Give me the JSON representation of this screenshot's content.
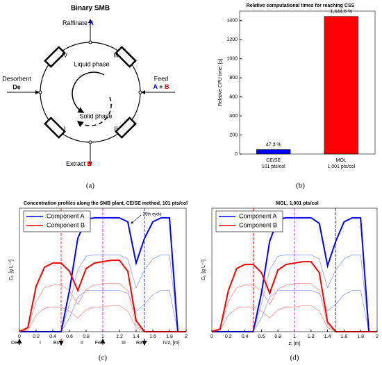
{
  "diagram": {
    "caption": "(a)",
    "title": "Binary SMB",
    "raffinate": "Raffinate",
    "raffinate_species": "A",
    "feed": "Feed",
    "feed_a": "A",
    "feed_plus": "+",
    "feed_b": "B",
    "desorbent": "Desorbent",
    "desorbent_species": "De",
    "extract": "Extract",
    "extract_species": "B",
    "liquid": "Liquid phase",
    "solid": "Solid phase",
    "zones": [
      "I",
      "II",
      "III",
      "IV"
    ]
  },
  "chart_data": [
    {
      "type": "bar",
      "caption": "(b)",
      "title": "Relative computational times for reaching CSS",
      "ylabel": "Relative CPU time, [s]",
      "categories": [
        [
          "CE/SE",
          "101 pts/col"
        ],
        [
          "MOL",
          "1,001 pts/col"
        ]
      ],
      "values": [
        47.3,
        1444.6
      ],
      "value_labels": [
        "47.3 %",
        "1,444.6 %"
      ],
      "colors": [
        "#0000ff",
        "#ff0000"
      ],
      "ylim": [
        0,
        1500
      ],
      "yticks": [
        0,
        200,
        400,
        600,
        800,
        1000,
        1200,
        1400
      ]
    },
    {
      "type": "line",
      "caption": "(c)",
      "title": "Concentration profiles along the SMB plant, CE/SE method, 101 pts/col",
      "xlabel": "z, [m]",
      "ylabel": "Cᵢ, [g L⁻¹]",
      "x": [
        0,
        0.1,
        0.2,
        0.3,
        0.4,
        0.5,
        0.6,
        0.7,
        0.8,
        0.9,
        1,
        1.1,
        1.2,
        1.3,
        1.4,
        1.5,
        1.6,
        1.7,
        1.8,
        1.9,
        2
      ],
      "xlim": [
        0,
        2
      ],
      "xticks": [
        0,
        0.2,
        0.4,
        0.6,
        0.8,
        1,
        1.2,
        1.4,
        1.6,
        1.8,
        2
      ],
      "ylim": [
        0,
        0.9
      ],
      "legend": "upper left",
      "series": [
        {
          "name": "Component A",
          "color": "#0000ff",
          "values": [
            0,
            0,
            0,
            0,
            0,
            0,
            0.3,
            0.68,
            0.82,
            0.83,
            0.83,
            0.83,
            0.83,
            0.8,
            0.5,
            0.68,
            0.8,
            0.83,
            0.83,
            0,
            0
          ]
        },
        {
          "name": "Component B",
          "color": "#ff0000",
          "values": [
            0,
            0.03,
            0.33,
            0.47,
            0.5,
            0.5,
            0.44,
            0.3,
            0.46,
            0.5,
            0.51,
            0.52,
            0.52,
            0.44,
            0.08,
            0,
            0,
            0,
            0,
            0,
            0
          ]
        }
      ],
      "history": [
        {
          "color": "#7f8fff",
          "values": [
            0,
            0,
            0,
            0,
            0,
            0,
            0.1,
            0.25,
            0.3,
            0.3,
            0.3,
            0.3,
            0.3,
            0.28,
            0.15,
            0.2,
            0.27,
            0.3,
            0.3,
            0,
            0
          ]
        },
        {
          "color": "#7f8fff",
          "values": [
            0,
            0,
            0,
            0,
            0,
            0,
            0.2,
            0.45,
            0.55,
            0.56,
            0.56,
            0.56,
            0.56,
            0.53,
            0.32,
            0.45,
            0.53,
            0.56,
            0.56,
            0,
            0
          ]
        },
        {
          "color": "#ff8080",
          "values": [
            0,
            0.01,
            0.12,
            0.17,
            0.18,
            0.18,
            0.15,
            0.1,
            0.16,
            0.18,
            0.18,
            0.19,
            0.19,
            0.15,
            0.03,
            0,
            0,
            0,
            0,
            0,
            0
          ]
        },
        {
          "color": "#ff8080",
          "values": [
            0,
            0.02,
            0.22,
            0.32,
            0.34,
            0.34,
            0.3,
            0.2,
            0.31,
            0.34,
            0.35,
            0.35,
            0.35,
            0.3,
            0.05,
            0,
            0,
            0,
            0,
            0,
            0
          ]
        }
      ],
      "vlines": [
        {
          "value": 0.5,
          "color": "#ff0000"
        },
        {
          "value": 1,
          "color": "#cc00cc"
        },
        {
          "value": 1.5,
          "color": "#0000ff"
        }
      ],
      "annotation": "25th cycle",
      "ports": [
        "De",
        "Ex",
        "Fe",
        "Ra"
      ],
      "zones": [
        "I",
        "II",
        "III",
        "IV"
      ]
    },
    {
      "type": "line",
      "caption": "(d)",
      "title": "MOL, 1,001 pts/col",
      "xlabel": "z, [m]",
      "ylabel": "Cᵢ, [g L⁻¹]",
      "x": [
        0,
        0.1,
        0.2,
        0.3,
        0.4,
        0.5,
        0.6,
        0.7,
        0.8,
        0.9,
        1,
        1.1,
        1.2,
        1.3,
        1.4,
        1.5,
        1.6,
        1.7,
        1.8,
        1.9,
        2
      ],
      "xlim": [
        0,
        2
      ],
      "xticks": [
        0,
        0.2,
        0.4,
        0.6,
        0.8,
        1,
        1.2,
        1.4,
        1.6,
        1.8,
        2
      ],
      "ylim": [
        0,
        0.9
      ],
      "legend": "upper left",
      "series": [
        {
          "name": "Component A",
          "color": "#0000ff",
          "values": [
            0,
            0,
            0,
            0,
            0,
            0,
            0.28,
            0.66,
            0.82,
            0.83,
            0.83,
            0.83,
            0.83,
            0.79,
            0.48,
            0.66,
            0.8,
            0.83,
            0.83,
            0,
            0
          ]
        },
        {
          "name": "Component B",
          "color": "#ff0000",
          "values": [
            0,
            0.02,
            0.3,
            0.46,
            0.49,
            0.49,
            0.43,
            0.28,
            0.45,
            0.49,
            0.5,
            0.51,
            0.51,
            0.43,
            0.07,
            0,
            0,
            0,
            0,
            0,
            0
          ]
        }
      ],
      "history": [
        {
          "color": "#7f8fff",
          "values": [
            0,
            0,
            0,
            0,
            0,
            0,
            0.1,
            0.25,
            0.3,
            0.3,
            0.3,
            0.3,
            0.3,
            0.28,
            0.15,
            0.2,
            0.27,
            0.3,
            0.3,
            0,
            0
          ]
        },
        {
          "color": "#7f8fff",
          "values": [
            0,
            0,
            0,
            0,
            0,
            0,
            0.2,
            0.45,
            0.55,
            0.56,
            0.56,
            0.56,
            0.56,
            0.53,
            0.32,
            0.45,
            0.53,
            0.56,
            0.56,
            0,
            0
          ]
        },
        {
          "color": "#ff8080",
          "values": [
            0,
            0.01,
            0.12,
            0.17,
            0.18,
            0.18,
            0.15,
            0.1,
            0.16,
            0.18,
            0.18,
            0.19,
            0.19,
            0.15,
            0.03,
            0,
            0,
            0,
            0,
            0,
            0
          ]
        },
        {
          "color": "#ff8080",
          "values": [
            0,
            0.02,
            0.22,
            0.32,
            0.34,
            0.34,
            0.3,
            0.2,
            0.31,
            0.34,
            0.35,
            0.35,
            0.35,
            0.3,
            0.05,
            0,
            0,
            0,
            0,
            0,
            0
          ]
        }
      ],
      "vlines": [
        {
          "value": 0.5,
          "color": "#ff0000"
        },
        {
          "value": 1,
          "color": "#cc00cc"
        },
        {
          "value": 1.5,
          "color": "#0000ff"
        }
      ]
    }
  ]
}
